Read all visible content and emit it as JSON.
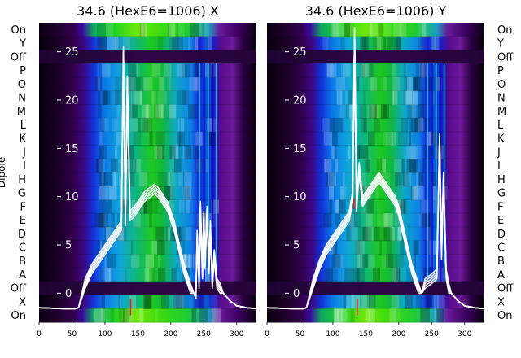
{
  "chart_data": [
    {
      "type": "heatmap",
      "title": "34.6 (HexE6=1006) X",
      "ylabel": "Dipole",
      "row_labels": [
        "On",
        "Y",
        "Off",
        "P",
        "O",
        "N",
        "M",
        "L",
        "K",
        "J",
        "I",
        "H",
        "G",
        "F",
        "E",
        "D",
        "C",
        "B",
        "A",
        "Off",
        "X",
        "On"
      ],
      "x_ticks": [
        0,
        50,
        100,
        150,
        200,
        250,
        300
      ],
      "xlim": [
        0,
        330
      ],
      "overlay_yticks": [
        0,
        5,
        10,
        15,
        20,
        25
      ],
      "overlay_ytick_labels": [
        "0",
        "5",
        "10",
        "15",
        "20",
        "25"
      ],
      "overlay_ylim": [
        -3,
        28
      ],
      "overlay_trace": {
        "x": [
          0,
          40,
          55,
          60,
          70,
          80,
          90,
          100,
          110,
          120,
          125,
          128,
          131,
          134,
          138,
          145,
          150,
          155,
          160,
          165,
          170,
          175,
          180,
          185,
          190,
          195,
          200,
          205,
          210,
          215,
          220,
          225,
          230,
          235,
          238,
          240,
          243,
          245,
          248,
          250,
          252,
          255,
          258,
          260,
          263,
          266,
          270,
          275,
          280,
          290,
          300,
          315,
          330
        ],
        "y": [
          -1.5,
          -1.6,
          -1.6,
          -1.5,
          1.0,
          2.5,
          3.5,
          4.5,
          5.5,
          6.5,
          7.0,
          25.0,
          7.5,
          22.0,
          8.0,
          8.5,
          9.0,
          9.5,
          10.0,
          10.3,
          10.5,
          10.8,
          10.5,
          10.0,
          9.5,
          9.0,
          8.0,
          7.0,
          5.5,
          4.0,
          2.5,
          1.5,
          0.5,
          0.0,
          -0.5,
          6.0,
          1.0,
          9.0,
          2.0,
          8.0,
          3.0,
          8.5,
          2.5,
          7.0,
          1.0,
          4.0,
          1.0,
          0.5,
          0.0,
          -0.8,
          -1.3,
          -1.5,
          -1.6
        ]
      }
    },
    {
      "type": "heatmap",
      "title": "34.6 (HexE6=1006) Y",
      "ylabel": "",
      "row_labels": [
        "On",
        "Y",
        "Off",
        "P",
        "O",
        "N",
        "M",
        "L",
        "K",
        "J",
        "I",
        "H",
        "G",
        "F",
        "E",
        "D",
        "C",
        "B",
        "A",
        "Off",
        "X",
        "On"
      ],
      "x_ticks": [
        0,
        50,
        100,
        150,
        200,
        250,
        300
      ],
      "xlim": [
        0,
        330
      ],
      "overlay_yticks": [
        0,
        5,
        10,
        15,
        20,
        25
      ],
      "overlay_ytick_labels": [
        "0",
        "5",
        "10",
        "15",
        "20",
        "25"
      ],
      "overlay_ylim": [
        -3,
        28
      ],
      "overlay_trace": {
        "x": [
          0,
          40,
          55,
          60,
          70,
          80,
          90,
          100,
          110,
          120,
          125,
          130,
          133,
          136,
          140,
          145,
          150,
          155,
          160,
          165,
          170,
          175,
          180,
          185,
          190,
          195,
          200,
          205,
          210,
          215,
          220,
          225,
          230,
          235,
          240,
          250,
          258,
          262,
          265,
          268,
          272,
          276,
          280,
          290,
          300,
          315,
          330
        ],
        "y": [
          -1.5,
          -1.6,
          -1.6,
          -1.5,
          1.0,
          3.0,
          4.5,
          5.5,
          6.5,
          7.5,
          8.0,
          10.0,
          27.0,
          9.0,
          13.0,
          9.5,
          10.0,
          10.5,
          11.0,
          11.5,
          12.0,
          11.5,
          11.0,
          10.5,
          10.0,
          9.5,
          8.5,
          7.0,
          5.5,
          4.0,
          2.5,
          1.5,
          0.5,
          0.0,
          1.0,
          1.5,
          2.0,
          16.0,
          4.0,
          12.0,
          2.0,
          0.5,
          0.0,
          -0.8,
          -1.3,
          -1.5,
          -1.6
        ]
      }
    }
  ]
}
